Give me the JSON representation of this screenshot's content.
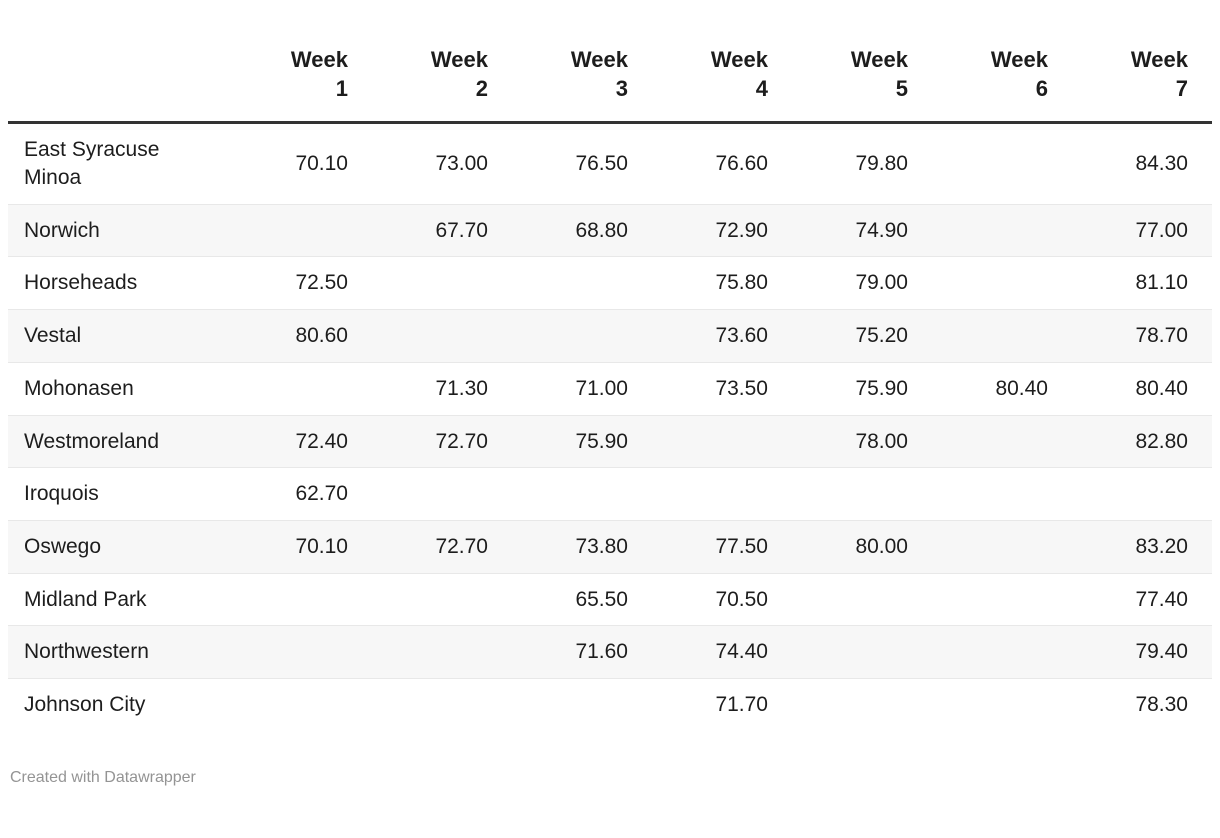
{
  "chart_data": {
    "type": "table",
    "categories": [
      "Week 1",
      "Week 2",
      "Week 3",
      "Week 4",
      "Week 5",
      "Week 6",
      "Week 7"
    ],
    "series": [
      {
        "name": "East Syracuse Minoa",
        "values": [
          70.1,
          73.0,
          76.5,
          76.6,
          79.8,
          null,
          84.3
        ]
      },
      {
        "name": "Norwich",
        "values": [
          null,
          67.7,
          68.8,
          72.9,
          74.9,
          null,
          77.0
        ]
      },
      {
        "name": "Horseheads",
        "values": [
          72.5,
          null,
          null,
          75.8,
          79.0,
          null,
          81.1
        ]
      },
      {
        "name": "Vestal",
        "values": [
          80.6,
          null,
          null,
          73.6,
          75.2,
          null,
          78.7
        ]
      },
      {
        "name": "Mohonasen",
        "values": [
          null,
          71.3,
          71.0,
          73.5,
          75.9,
          80.4,
          80.4
        ]
      },
      {
        "name": "Westmoreland",
        "values": [
          72.4,
          72.7,
          75.9,
          null,
          78.0,
          null,
          82.8
        ]
      },
      {
        "name": "Iroquois",
        "values": [
          62.7,
          null,
          null,
          null,
          null,
          null,
          null
        ]
      },
      {
        "name": "Oswego",
        "values": [
          70.1,
          72.7,
          73.8,
          77.5,
          80.0,
          null,
          83.2
        ]
      },
      {
        "name": "Midland Park",
        "values": [
          null,
          null,
          65.5,
          70.5,
          null,
          null,
          77.4
        ]
      },
      {
        "name": "Northwestern",
        "values": [
          null,
          null,
          71.6,
          74.4,
          null,
          null,
          79.4
        ]
      },
      {
        "name": "Johnson City",
        "values": [
          null,
          null,
          null,
          71.7,
          null,
          null,
          78.3
        ]
      }
    ],
    "value_decimals": 2,
    "layout": {
      "zebra_striping": true,
      "striped_rows": "even",
      "header_two_lines": true,
      "numeric_alignment": "right"
    }
  },
  "footer": {
    "credit": "Created with Datawrapper"
  },
  "colors": {
    "text": "#1d1d1d",
    "header_rule": "#333333",
    "row_divider": "#e8e8e8",
    "stripe": "#f7f7f7",
    "footer_text": "#949494",
    "background": "#ffffff"
  }
}
